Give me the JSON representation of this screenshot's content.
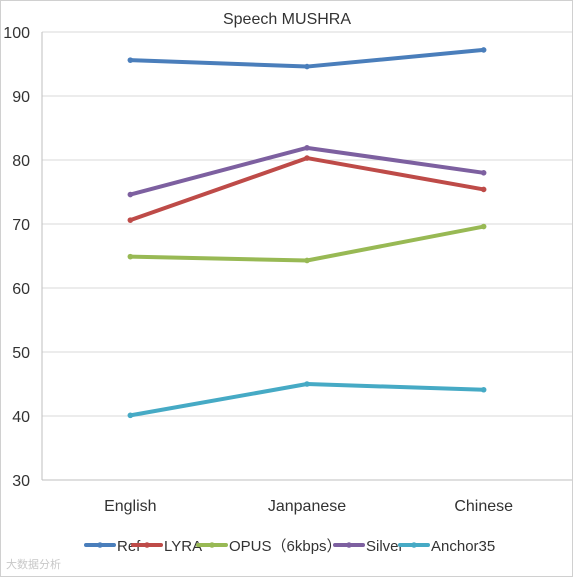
{
  "chart_data": {
    "type": "line",
    "title": "Speech MUSHRA",
    "xlabel": "",
    "ylabel": "",
    "categories": [
      "English",
      "Janpanese",
      "Chinese"
    ],
    "ylim": [
      30,
      100
    ],
    "yticks": [
      30,
      40,
      50,
      60,
      70,
      80,
      90,
      100
    ],
    "grid": true,
    "legend_position": "bottom",
    "series": [
      {
        "name": "Ref",
        "color": "#4a7ebb",
        "values": [
          95.6,
          94.6,
          97.2
        ]
      },
      {
        "name": "LYRA",
        "color": "#be4b48",
        "values": [
          70.6,
          80.3,
          75.4
        ]
      },
      {
        "name": "OPUS（6kbps）",
        "color": "#98b954",
        "values": [
          64.9,
          64.3,
          69.6
        ]
      },
      {
        "name": "Silver",
        "color": "#7d60a0",
        "values": [
          74.6,
          81.9,
          78.0
        ]
      },
      {
        "name": "Anchor35",
        "color": "#46aac5",
        "values": [
          40.1,
          45.0,
          44.1
        ]
      }
    ]
  },
  "watermark": {
    "text": "大数据分析"
  }
}
